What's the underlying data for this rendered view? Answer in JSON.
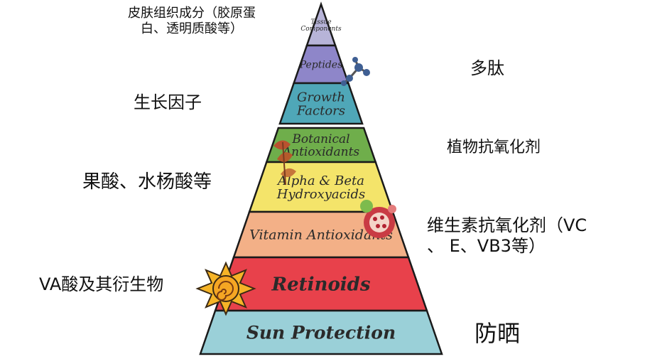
{
  "tiers": [
    {
      "id": "tissue",
      "label_lines": [
        "Tissue",
        "Components"
      ],
      "color": "#b7b4d8"
    },
    {
      "id": "peptides",
      "label_lines": [
        "Peptides"
      ],
      "color": "#8e86c9"
    },
    {
      "id": "growth",
      "label_lines": [
        "Growth",
        "Factors"
      ],
      "color": "#4fa7b8"
    },
    {
      "id": "botanical",
      "label_lines": [
        "Botanical",
        "Antioxidants"
      ],
      "color": "#6fae4b"
    },
    {
      "id": "alpha",
      "label_lines": [
        "Alpha & Beta",
        "Hydroxyacids"
      ],
      "color": "#f4e46a"
    },
    {
      "id": "vitamin",
      "label_lines": [
        "Vitamin Antioxidants"
      ],
      "color": "#f3b087"
    },
    {
      "id": "retinoids",
      "label_lines": [
        "Retinoids"
      ],
      "color": "#e8414b"
    },
    {
      "id": "sun",
      "label_lines": [
        "Sun Protection"
      ],
      "color": "#9ad0d8"
    }
  ],
  "annotations": {
    "tissue": [
      "皮肤组织成分（胶原蛋",
      "白、透明质酸等）"
    ],
    "peptides": [
      "多肽"
    ],
    "growth": [
      "生长因子"
    ],
    "botanical": [
      "植物抗氧化剂"
    ],
    "alpha": [
      "果酸、水杨酸等"
    ],
    "vitamin": [
      "维生素抗氧化剂（VC",
      "、 E、VB3等）"
    ],
    "retinoids": [
      "VA酸及其衍生物"
    ],
    "sun": [
      "防晒"
    ]
  },
  "icons": [
    "molecule-icon",
    "leaf-icon",
    "pomegranate-icon",
    "sun-icon"
  ]
}
